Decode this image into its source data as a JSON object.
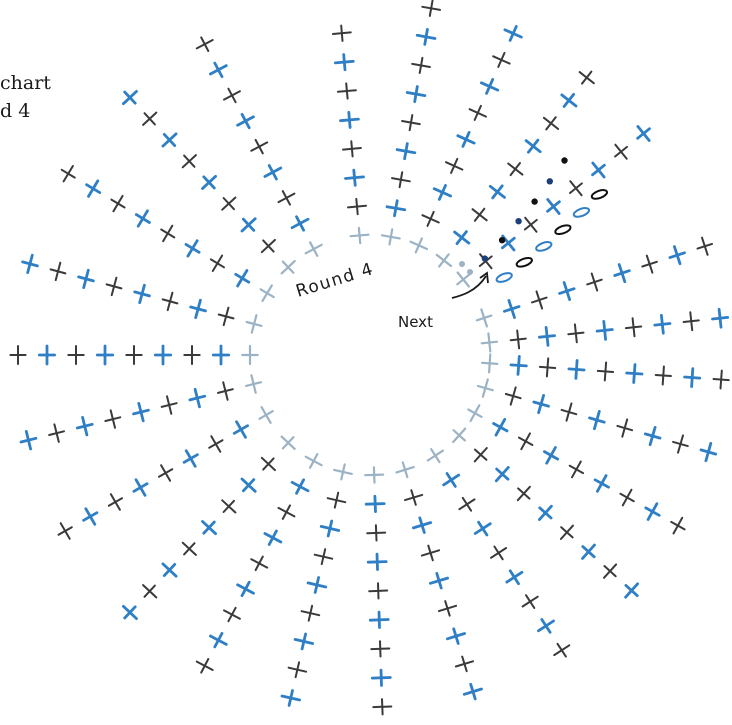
{
  "title": {
    "line1": "chart",
    "line2": "d 4"
  },
  "round_label": "Round 4",
  "next_label": "Next",
  "colors": {
    "blue": "#2f7fc6",
    "dark": "#3a3a3a",
    "faint": "#9bb3c4",
    "navy": "#1d3f7a",
    "black": "#111111"
  },
  "legend_symbols": {
    "single_crochet": "cross",
    "slip_stitch": "dot",
    "chain": "oval"
  }
}
